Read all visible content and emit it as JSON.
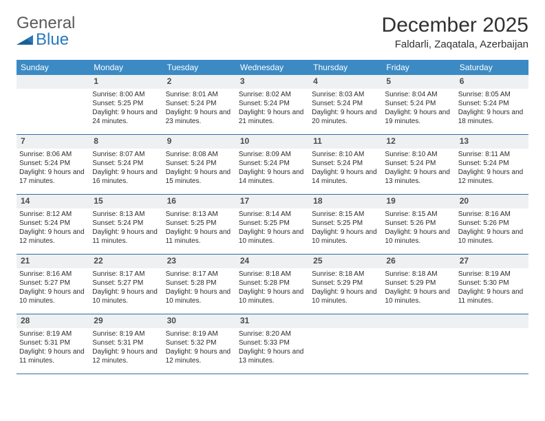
{
  "brand": {
    "word1": "General",
    "word2": "Blue",
    "word1_color": "#5a5a5a",
    "word2_color": "#2878bd",
    "icon_color": "#2878bd"
  },
  "header": {
    "title": "December 2025",
    "location": "Faldarli, Zaqatala, Azerbaijan",
    "title_fontsize": 30,
    "location_fontsize": 15
  },
  "colors": {
    "header_bg": "#3b8ac4",
    "header_text": "#ffffff",
    "daynum_bg": "#eef0f1",
    "daynum_text": "#4a4a4a",
    "row_border": "#2e6da4",
    "body_text": "#2b2b2b",
    "page_bg": "#ffffff"
  },
  "typography": {
    "body_fontsize": 10,
    "daynum_fontsize": 12,
    "dow_fontsize": 12,
    "font_family": "Arial"
  },
  "days_of_week": [
    "Sunday",
    "Monday",
    "Tuesday",
    "Wednesday",
    "Thursday",
    "Friday",
    "Saturday"
  ],
  "weeks": [
    [
      {
        "num": "",
        "sunrise": "",
        "sunset": "",
        "daylight": ""
      },
      {
        "num": "1",
        "sunrise": "Sunrise: 8:00 AM",
        "sunset": "Sunset: 5:25 PM",
        "daylight": "Daylight: 9 hours and 24 minutes."
      },
      {
        "num": "2",
        "sunrise": "Sunrise: 8:01 AM",
        "sunset": "Sunset: 5:24 PM",
        "daylight": "Daylight: 9 hours and 23 minutes."
      },
      {
        "num": "3",
        "sunrise": "Sunrise: 8:02 AM",
        "sunset": "Sunset: 5:24 PM",
        "daylight": "Daylight: 9 hours and 21 minutes."
      },
      {
        "num": "4",
        "sunrise": "Sunrise: 8:03 AM",
        "sunset": "Sunset: 5:24 PM",
        "daylight": "Daylight: 9 hours and 20 minutes."
      },
      {
        "num": "5",
        "sunrise": "Sunrise: 8:04 AM",
        "sunset": "Sunset: 5:24 PM",
        "daylight": "Daylight: 9 hours and 19 minutes."
      },
      {
        "num": "6",
        "sunrise": "Sunrise: 8:05 AM",
        "sunset": "Sunset: 5:24 PM",
        "daylight": "Daylight: 9 hours and 18 minutes."
      }
    ],
    [
      {
        "num": "7",
        "sunrise": "Sunrise: 8:06 AM",
        "sunset": "Sunset: 5:24 PM",
        "daylight": "Daylight: 9 hours and 17 minutes."
      },
      {
        "num": "8",
        "sunrise": "Sunrise: 8:07 AM",
        "sunset": "Sunset: 5:24 PM",
        "daylight": "Daylight: 9 hours and 16 minutes."
      },
      {
        "num": "9",
        "sunrise": "Sunrise: 8:08 AM",
        "sunset": "Sunset: 5:24 PM",
        "daylight": "Daylight: 9 hours and 15 minutes."
      },
      {
        "num": "10",
        "sunrise": "Sunrise: 8:09 AM",
        "sunset": "Sunset: 5:24 PM",
        "daylight": "Daylight: 9 hours and 14 minutes."
      },
      {
        "num": "11",
        "sunrise": "Sunrise: 8:10 AM",
        "sunset": "Sunset: 5:24 PM",
        "daylight": "Daylight: 9 hours and 14 minutes."
      },
      {
        "num": "12",
        "sunrise": "Sunrise: 8:10 AM",
        "sunset": "Sunset: 5:24 PM",
        "daylight": "Daylight: 9 hours and 13 minutes."
      },
      {
        "num": "13",
        "sunrise": "Sunrise: 8:11 AM",
        "sunset": "Sunset: 5:24 PM",
        "daylight": "Daylight: 9 hours and 12 minutes."
      }
    ],
    [
      {
        "num": "14",
        "sunrise": "Sunrise: 8:12 AM",
        "sunset": "Sunset: 5:24 PM",
        "daylight": "Daylight: 9 hours and 12 minutes."
      },
      {
        "num": "15",
        "sunrise": "Sunrise: 8:13 AM",
        "sunset": "Sunset: 5:24 PM",
        "daylight": "Daylight: 9 hours and 11 minutes."
      },
      {
        "num": "16",
        "sunrise": "Sunrise: 8:13 AM",
        "sunset": "Sunset: 5:25 PM",
        "daylight": "Daylight: 9 hours and 11 minutes."
      },
      {
        "num": "17",
        "sunrise": "Sunrise: 8:14 AM",
        "sunset": "Sunset: 5:25 PM",
        "daylight": "Daylight: 9 hours and 10 minutes."
      },
      {
        "num": "18",
        "sunrise": "Sunrise: 8:15 AM",
        "sunset": "Sunset: 5:25 PM",
        "daylight": "Daylight: 9 hours and 10 minutes."
      },
      {
        "num": "19",
        "sunrise": "Sunrise: 8:15 AM",
        "sunset": "Sunset: 5:26 PM",
        "daylight": "Daylight: 9 hours and 10 minutes."
      },
      {
        "num": "20",
        "sunrise": "Sunrise: 8:16 AM",
        "sunset": "Sunset: 5:26 PM",
        "daylight": "Daylight: 9 hours and 10 minutes."
      }
    ],
    [
      {
        "num": "21",
        "sunrise": "Sunrise: 8:16 AM",
        "sunset": "Sunset: 5:27 PM",
        "daylight": "Daylight: 9 hours and 10 minutes."
      },
      {
        "num": "22",
        "sunrise": "Sunrise: 8:17 AM",
        "sunset": "Sunset: 5:27 PM",
        "daylight": "Daylight: 9 hours and 10 minutes."
      },
      {
        "num": "23",
        "sunrise": "Sunrise: 8:17 AM",
        "sunset": "Sunset: 5:28 PM",
        "daylight": "Daylight: 9 hours and 10 minutes."
      },
      {
        "num": "24",
        "sunrise": "Sunrise: 8:18 AM",
        "sunset": "Sunset: 5:28 PM",
        "daylight": "Daylight: 9 hours and 10 minutes."
      },
      {
        "num": "25",
        "sunrise": "Sunrise: 8:18 AM",
        "sunset": "Sunset: 5:29 PM",
        "daylight": "Daylight: 9 hours and 10 minutes."
      },
      {
        "num": "26",
        "sunrise": "Sunrise: 8:18 AM",
        "sunset": "Sunset: 5:29 PM",
        "daylight": "Daylight: 9 hours and 10 minutes."
      },
      {
        "num": "27",
        "sunrise": "Sunrise: 8:19 AM",
        "sunset": "Sunset: 5:30 PM",
        "daylight": "Daylight: 9 hours and 11 minutes."
      }
    ],
    [
      {
        "num": "28",
        "sunrise": "Sunrise: 8:19 AM",
        "sunset": "Sunset: 5:31 PM",
        "daylight": "Daylight: 9 hours and 11 minutes."
      },
      {
        "num": "29",
        "sunrise": "Sunrise: 8:19 AM",
        "sunset": "Sunset: 5:31 PM",
        "daylight": "Daylight: 9 hours and 12 minutes."
      },
      {
        "num": "30",
        "sunrise": "Sunrise: 8:19 AM",
        "sunset": "Sunset: 5:32 PM",
        "daylight": "Daylight: 9 hours and 12 minutes."
      },
      {
        "num": "31",
        "sunrise": "Sunrise: 8:20 AM",
        "sunset": "Sunset: 5:33 PM",
        "daylight": "Daylight: 9 hours and 13 minutes."
      },
      {
        "num": "",
        "sunrise": "",
        "sunset": "",
        "daylight": ""
      },
      {
        "num": "",
        "sunrise": "",
        "sunset": "",
        "daylight": ""
      },
      {
        "num": "",
        "sunrise": "",
        "sunset": "",
        "daylight": ""
      }
    ]
  ]
}
